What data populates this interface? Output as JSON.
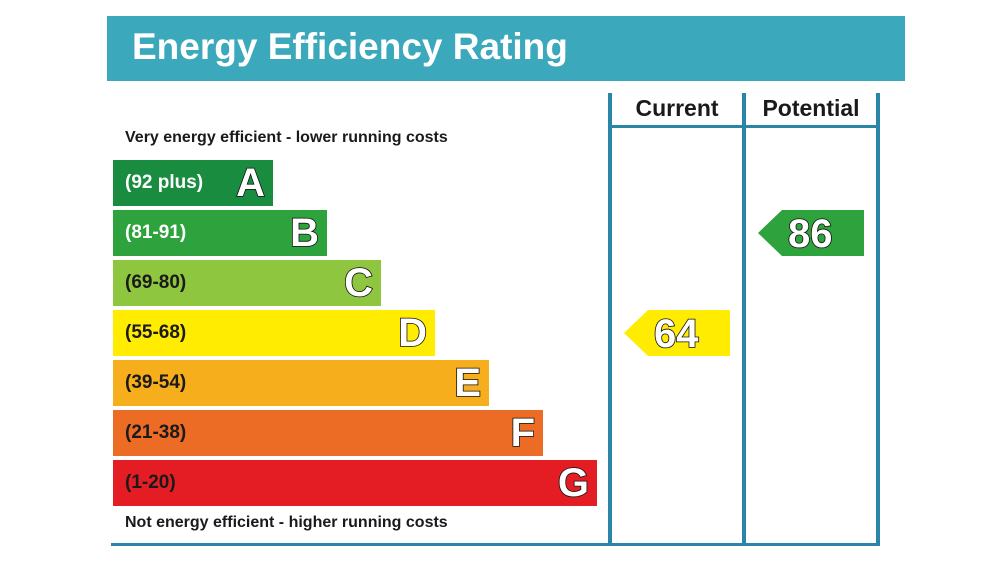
{
  "title": "Energy Efficiency Rating",
  "columns": {
    "current": "Current",
    "potential": "Potential"
  },
  "top_note": "Very energy efficient - lower running costs",
  "bottom_note": "Not energy efficient - higher running costs",
  "chart_data": {
    "type": "bar",
    "title": "Energy Efficiency Rating",
    "categories": [
      "A",
      "B",
      "C",
      "D",
      "E",
      "F",
      "G"
    ],
    "bands": [
      {
        "letter": "A",
        "range": "(92 plus)",
        "color": "#198c40",
        "text_color": "#ffffff"
      },
      {
        "letter": "B",
        "range": "(81-91)",
        "color": "#2da23d",
        "text_color": "#ffffff"
      },
      {
        "letter": "C",
        "range": "(69-80)",
        "color": "#8fc640",
        "text_color": "#1a1a1a"
      },
      {
        "letter": "D",
        "range": "(55-68)",
        "color": "#ffec00",
        "text_color": "#1a1a1a"
      },
      {
        "letter": "E",
        "range": "(39-54)",
        "color": "#f6ae1c",
        "text_color": "#1a1a1a"
      },
      {
        "letter": "F",
        "range": "(21-38)",
        "color": "#ec6b25",
        "text_color": "#1a1a1a"
      },
      {
        "letter": "G",
        "range": "(1-20)",
        "color": "#e31d23",
        "text_color": "#1a1a1a"
      }
    ],
    "current": {
      "value": 64,
      "band": "D",
      "color": "#ffec00"
    },
    "potential": {
      "value": 86,
      "band": "B",
      "color": "#2da23d"
    }
  }
}
